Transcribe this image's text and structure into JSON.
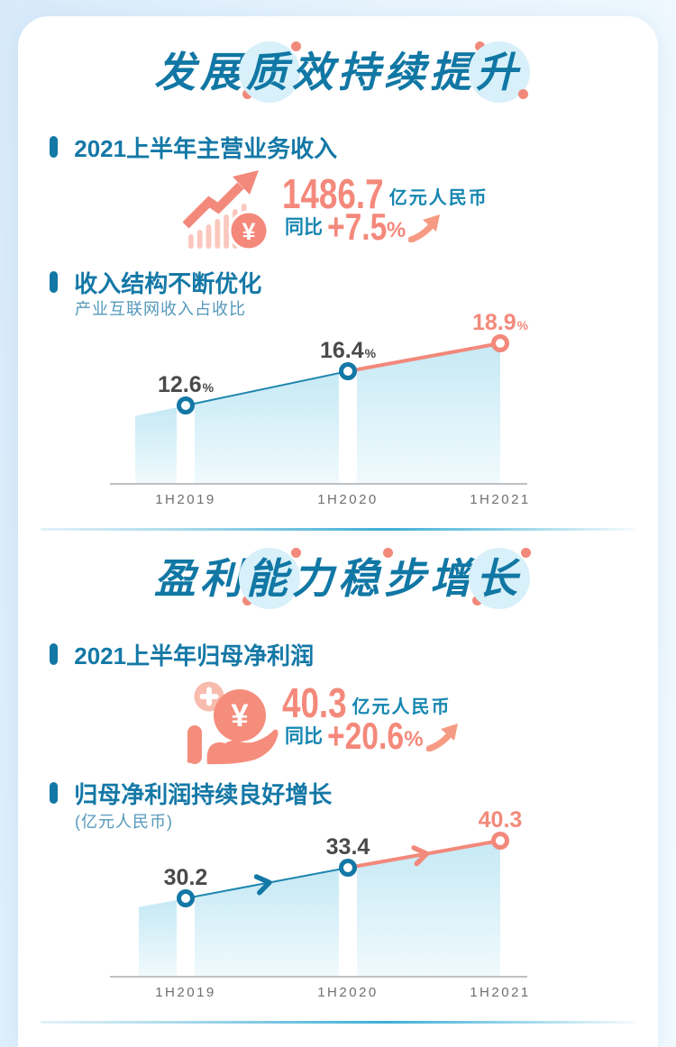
{
  "colors": {
    "teal_text": "#1478A6",
    "teal_unit": "#1586B0",
    "coral": "#F2897B",
    "coral_soft": "#F9C7BD",
    "halo_blue": "#D7F0F9",
    "area_fill_top": "#C6E9F5",
    "area_fill_bottom": "#F0FAFD",
    "axis_gray": "#A8ACAF",
    "tick_gray": "#6F6F6F",
    "label_gray": "#4A4A4A",
    "divider_blue": "#3FAED6",
    "card_bg": "#FFFFFF"
  },
  "icons": {
    "stat1": "rising-bar-chart-yuan-icon",
    "stat2": "hand-holding-yuan-coin-icon",
    "yoy": "up-trend-arrow-icon",
    "bullet": "pill-bullet-icon"
  },
  "section1": {
    "title": "发展质效持续提升",
    "revenue": {
      "heading": "2021上半年主营业务收入",
      "value": "1486.7",
      "unit": "亿元人民币",
      "yoy_label": "同比",
      "yoy_value": "+7.5",
      "percent_sign": "%"
    },
    "chart_block": {
      "heading": "收入结构不断优化",
      "subtitle": "产业互联网收入占收比"
    }
  },
  "section2": {
    "title": "盈利能力稳步增长",
    "profit": {
      "heading": "2021上半年归母净利润",
      "value": "40.3",
      "unit": "亿元人民币",
      "yoy_label": "同比",
      "yoy_value": "+20.6",
      "percent_sign": "%"
    },
    "chart_block": {
      "heading": "归母净利润持续良好增长",
      "subtitle": "(亿元人民币)"
    }
  },
  "chart_data": [
    {
      "type": "area",
      "title": "产业互联网收入占收比",
      "categories": [
        "1H2019",
        "1H2020",
        "1H2021"
      ],
      "values": [
        12.6,
        16.4,
        18.9
      ],
      "value_suffix": "%",
      "highlight_last_point": true,
      "segment_arrows": false,
      "grid": false,
      "legend": false
    },
    {
      "type": "area",
      "title": "归母净利润持续良好增长 (亿元人民币)",
      "categories": [
        "1H2019",
        "1H2020",
        "1H2021"
      ],
      "values": [
        30.2,
        33.4,
        40.3
      ],
      "value_suffix": "",
      "highlight_last_point": true,
      "segment_arrows": true,
      "grid": false,
      "legend": false
    }
  ]
}
